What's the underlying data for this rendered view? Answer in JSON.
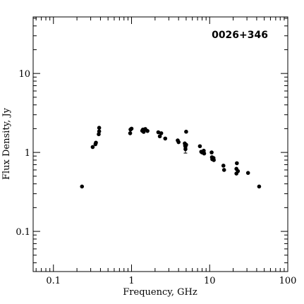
{
  "chart_data": {
    "type": "scatter",
    "source_name": "0026+346",
    "xlabel": "Frequency, GHz",
    "ylabel": "Flux Density, Jy",
    "x_scale": "log",
    "y_scale": "log",
    "xlim": [
      0.055,
      100
    ],
    "ylim": [
      0.031,
      52
    ],
    "grid": false,
    "x_major_ticks": [
      {
        "value": 0.1,
        "label": "0.1"
      },
      {
        "value": 1,
        "label": "1"
      },
      {
        "value": 10,
        "label": "10"
      },
      {
        "value": 100,
        "label": "100"
      }
    ],
    "y_major_ticks": [
      {
        "value": 0.1,
        "label": "0.1"
      },
      {
        "value": 1,
        "label": "1"
      },
      {
        "value": 10,
        "label": "10"
      }
    ],
    "points": [
      {
        "x": 0.232,
        "y": 0.37
      },
      {
        "x": 0.318,
        "y": 1.17
      },
      {
        "x": 0.345,
        "y": 1.27
      },
      {
        "x": 0.35,
        "y": 1.33
      },
      {
        "x": 0.38,
        "y": 1.7
      },
      {
        "x": 0.385,
        "y": 1.85
      },
      {
        "x": 0.385,
        "y": 2.05
      },
      {
        "x": 0.96,
        "y": 1.75
      },
      {
        "x": 0.97,
        "y": 1.95
      },
      {
        "x": 1.0,
        "y": 2.0
      },
      {
        "x": 1.37,
        "y": 1.88
      },
      {
        "x": 1.4,
        "y": 1.95
      },
      {
        "x": 1.43,
        "y": 1.82
      },
      {
        "x": 1.5,
        "y": 1.98
      },
      {
        "x": 1.6,
        "y": 1.87
      },
      {
        "x": 2.2,
        "y": 1.8
      },
      {
        "x": 2.3,
        "y": 1.6
      },
      {
        "x": 2.4,
        "y": 1.75
      },
      {
        "x": 2.7,
        "y": 1.5
      },
      {
        "x": 3.9,
        "y": 1.42
      },
      {
        "x": 4.0,
        "y": 1.35
      },
      {
        "x": 4.8,
        "y": 1.3
      },
      {
        "x": 4.85,
        "y": 1.22
      },
      {
        "x": 4.9,
        "y": 1.18
      },
      {
        "x": 4.9,
        "y": 1.1,
        "yerr": 0.12
      },
      {
        "x": 5.0,
        "y": 1.25
      },
      {
        "x": 5.0,
        "y": 1.83
      },
      {
        "x": 7.5,
        "y": 1.2
      },
      {
        "x": 7.8,
        "y": 1.02
      },
      {
        "x": 8.0,
        "y": 1.0
      },
      {
        "x": 8.4,
        "y": 1.05
      },
      {
        "x": 8.5,
        "y": 0.97
      },
      {
        "x": 10.6,
        "y": 1.0
      },
      {
        "x": 10.7,
        "y": 0.87
      },
      {
        "x": 10.8,
        "y": 0.82
      },
      {
        "x": 11.2,
        "y": 0.85
      },
      {
        "x": 11.3,
        "y": 0.8
      },
      {
        "x": 15.0,
        "y": 0.68
      },
      {
        "x": 15.3,
        "y": 0.6
      },
      {
        "x": 22.0,
        "y": 0.62
      },
      {
        "x": 22.0,
        "y": 0.54
      },
      {
        "x": 22.3,
        "y": 0.73
      },
      {
        "x": 23.0,
        "y": 0.58
      },
      {
        "x": 31.0,
        "y": 0.55
      },
      {
        "x": 43.0,
        "y": 0.37
      }
    ]
  }
}
